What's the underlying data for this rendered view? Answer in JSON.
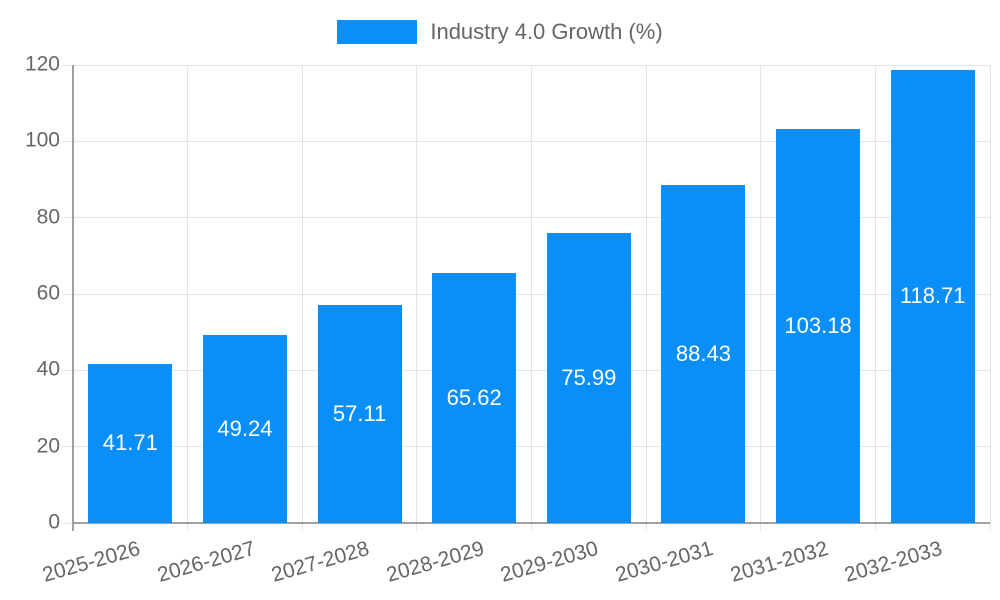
{
  "chart_data": {
    "type": "bar",
    "title": "Industry 4.0 Growth (%)",
    "categories": [
      "2025-2026",
      "2026-2027",
      "2027-2028",
      "2028-2029",
      "2029-2030",
      "2030-2031",
      "2031-2032",
      "2032-2033"
    ],
    "values": [
      41.71,
      49.24,
      57.11,
      65.62,
      75.99,
      88.43,
      103.18,
      118.71
    ],
    "value_labels": [
      "41.71",
      "49.24",
      "57.11",
      "65.62",
      "75.99",
      "88.43",
      "103.18",
      "118.71"
    ],
    "ytick_labels": [
      "0",
      "20",
      "40",
      "60",
      "80",
      "100",
      "120"
    ],
    "ylim": [
      0,
      120
    ],
    "ytick_step": 20,
    "xlabel": "",
    "ylabel": "",
    "grid": "on",
    "legend_position": "top-center",
    "colors": {
      "bar": "#0a8ef8",
      "value_label": "#ffffff",
      "axis_text": "#666666",
      "gridline": "#e4e4e4",
      "axis_line": "#a0a0a0",
      "background": "#ffffff"
    }
  }
}
